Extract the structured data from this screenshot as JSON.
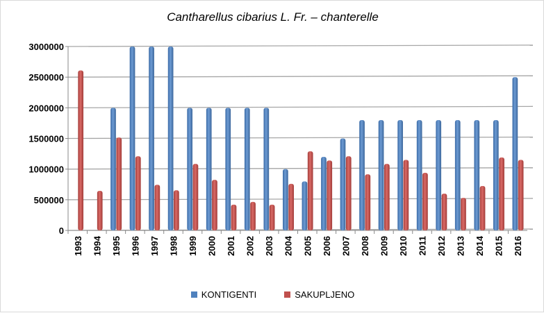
{
  "chart_data": {
    "type": "bar",
    "title": "Cantharellus cibarius  L. Fr. – chanterelle",
    "xlabel": "",
    "ylabel": "",
    "ylim": [
      0,
      3000000
    ],
    "yticks": [
      "0",
      "500000",
      "1000000",
      "1500000",
      "2000000",
      "2500000",
      "3000000"
    ],
    "categories": [
      "1993",
      "1994",
      "1995",
      "1996",
      "1997",
      "1998",
      "1999",
      "2000",
      "2001",
      "2002",
      "2003",
      "2004",
      "2005",
      "2006",
      "2007",
      "2008",
      "2009",
      "2010",
      "2011",
      "2012",
      "2013",
      "2014",
      "2015",
      "2016"
    ],
    "series": [
      {
        "name": "KONTIGENTI",
        "color": "#4f81bd",
        "values": [
          null,
          null,
          2000000,
          3000000,
          3000000,
          3000000,
          2000000,
          2000000,
          2000000,
          2000000,
          2000000,
          1000000,
          800000,
          1200000,
          1500000,
          1800000,
          1800000,
          1800000,
          1800000,
          1800000,
          1800000,
          1800000,
          1800000,
          2500000
        ]
      },
      {
        "name": "SAKUPLJENO",
        "color": "#c0504d",
        "values": [
          2610000,
          645000,
          1515000,
          1210000,
          745000,
          655000,
          1085000,
          825000,
          420000,
          465000,
          420000,
          760000,
          1290000,
          1140000,
          1210000,
          915000,
          1085000,
          1150000,
          940000,
          600000,
          530000,
          725000,
          1190000,
          1150000
        ]
      }
    ],
    "grid": true,
    "legend": "bottom"
  }
}
